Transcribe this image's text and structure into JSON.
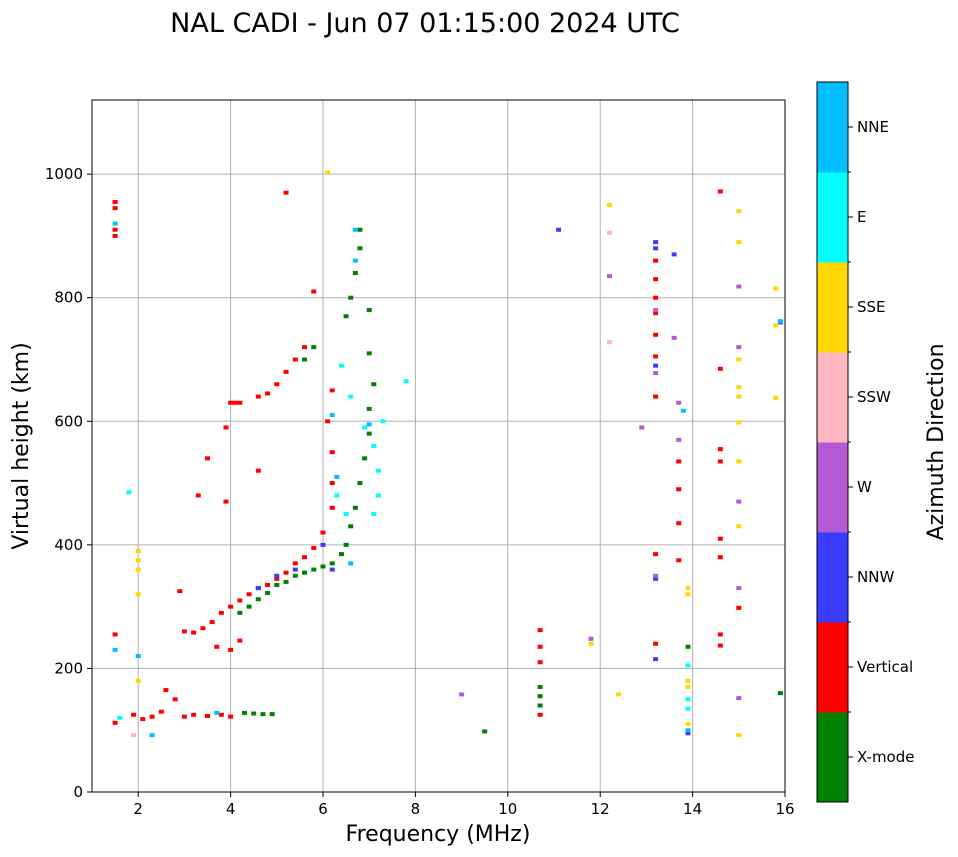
{
  "chart_data": {
    "type": "scatter",
    "title": "NAL CADI - Jun 07 01:15:00 2024 UTC",
    "xlabel": "Frequency (MHz)",
    "ylabel": "Virtual height (km)",
    "xlim": [
      1,
      16
    ],
    "ylim": [
      0,
      1120
    ],
    "xticks": [
      2,
      4,
      6,
      8,
      10,
      12,
      14,
      16
    ],
    "yticks": [
      0,
      200,
      400,
      600,
      800,
      1000
    ],
    "grid": true,
    "colorbar": {
      "label": "Azimuth Direction",
      "categories": [
        {
          "name": "X-mode",
          "color": "#008000"
        },
        {
          "name": "Vertical",
          "color": "#ff0000"
        },
        {
          "name": "NNW",
          "color": "#3b3bff"
        },
        {
          "name": "W",
          "color": "#b35ad6"
        },
        {
          "name": "SSW",
          "color": "#ffb6c1"
        },
        {
          "name": "SSE",
          "color": "#ffd700"
        },
        {
          "name": "E",
          "color": "#00ffff"
        },
        {
          "name": "NNE",
          "color": "#00bfff"
        }
      ]
    },
    "series": [
      {
        "name": "Vertical",
        "points": [
          [
            1.5,
            955
          ],
          [
            1.5,
            945
          ],
          [
            1.5,
            910
          ],
          [
            1.5,
            900
          ],
          [
            1.5,
            255
          ],
          [
            1.5,
            112
          ],
          [
            1.9,
            125
          ],
          [
            2.1,
            118
          ],
          [
            2.3,
            122
          ],
          [
            2.5,
            130
          ],
          [
            2.6,
            165
          ],
          [
            2.8,
            150
          ],
          [
            3.0,
            122
          ],
          [
            3.2,
            125
          ],
          [
            3.5,
            123
          ],
          [
            3.8,
            125
          ],
          [
            4.0,
            122
          ],
          [
            2.9,
            325
          ],
          [
            3.0,
            260
          ],
          [
            3.2,
            258
          ],
          [
            3.4,
            265
          ],
          [
            3.6,
            275
          ],
          [
            3.8,
            290
          ],
          [
            4.0,
            300
          ],
          [
            4.2,
            310
          ],
          [
            4.4,
            320
          ],
          [
            4.6,
            330
          ],
          [
            4.8,
            335
          ],
          [
            5.0,
            345
          ],
          [
            5.2,
            355
          ],
          [
            5.4,
            370
          ],
          [
            5.6,
            380
          ],
          [
            5.8,
            395
          ],
          [
            6.0,
            420
          ],
          [
            4.0,
            630
          ],
          [
            4.1,
            630
          ],
          [
            4.2,
            630
          ],
          [
            4.6,
            640
          ],
          [
            4.8,
            645
          ],
          [
            5.0,
            660
          ],
          [
            5.2,
            680
          ],
          [
            5.4,
            700
          ],
          [
            5.6,
            720
          ],
          [
            3.9,
            590
          ],
          [
            3.5,
            540
          ],
          [
            3.3,
            480
          ],
          [
            3.9,
            470
          ],
          [
            4.6,
            520
          ],
          [
            6.1,
            600
          ],
          [
            6.2,
            550
          ],
          [
            6.2,
            500
          ],
          [
            6.2,
            460
          ],
          [
            5.8,
            810
          ],
          [
            5.2,
            970
          ],
          [
            6.2,
            650
          ],
          [
            4.0,
            230
          ],
          [
            4.2,
            245
          ],
          [
            3.7,
            235
          ],
          [
            10.7,
            262
          ],
          [
            10.7,
            235
          ],
          [
            10.7,
            210
          ],
          [
            10.7,
            125
          ],
          [
            13.2,
            860
          ],
          [
            13.2,
            830
          ],
          [
            13.2,
            800
          ],
          [
            13.2,
            775
          ],
          [
            13.2,
            740
          ],
          [
            13.2,
            705
          ],
          [
            13.2,
            640
          ],
          [
            13.2,
            385
          ],
          [
            13.2,
            240
          ],
          [
            13.7,
            535
          ],
          [
            13.7,
            490
          ],
          [
            13.7,
            435
          ],
          [
            13.7,
            375
          ],
          [
            14.6,
            972
          ],
          [
            14.6,
            685
          ],
          [
            14.6,
            555
          ],
          [
            14.6,
            535
          ],
          [
            14.6,
            410
          ],
          [
            14.6,
            380
          ],
          [
            14.6,
            255
          ],
          [
            14.6,
            237
          ],
          [
            15.0,
            298
          ]
        ]
      },
      {
        "name": "X-mode",
        "points": [
          [
            4.3,
            128
          ],
          [
            4.5,
            127
          ],
          [
            4.7,
            126
          ],
          [
            4.9,
            126
          ],
          [
            4.2,
            290
          ],
          [
            4.4,
            300
          ],
          [
            4.6,
            312
          ],
          [
            4.8,
            322
          ],
          [
            5.0,
            335
          ],
          [
            5.2,
            340
          ],
          [
            5.4,
            350
          ],
          [
            5.6,
            355
          ],
          [
            5.8,
            360
          ],
          [
            6.0,
            365
          ],
          [
            6.2,
            370
          ],
          [
            6.4,
            385
          ],
          [
            6.5,
            400
          ],
          [
            6.6,
            430
          ],
          [
            6.7,
            460
          ],
          [
            6.8,
            500
          ],
          [
            6.9,
            540
          ],
          [
            7.0,
            580
          ],
          [
            7.0,
            620
          ],
          [
            7.1,
            660
          ],
          [
            5.6,
            700
          ],
          [
            5.8,
            720
          ],
          [
            6.5,
            770
          ],
          [
            6.6,
            800
          ],
          [
            6.7,
            840
          ],
          [
            6.8,
            880
          ],
          [
            6.8,
            910
          ],
          [
            7.0,
            780
          ],
          [
            7.0,
            710
          ],
          [
            10.7,
            170
          ],
          [
            10.7,
            155
          ],
          [
            10.7,
            140
          ],
          [
            13.9,
            235
          ],
          [
            15.9,
            160
          ],
          [
            9.5,
            98
          ]
        ]
      },
      {
        "name": "NNW",
        "points": [
          [
            4.6,
            330
          ],
          [
            5.0,
            350
          ],
          [
            5.4,
            360
          ],
          [
            6.0,
            400
          ],
          [
            6.2,
            360
          ],
          [
            11.1,
            910
          ],
          [
            13.2,
            890
          ],
          [
            13.2,
            880
          ],
          [
            13.2,
            690
          ],
          [
            13.2,
            345
          ],
          [
            13.2,
            215
          ],
          [
            13.6,
            870
          ],
          [
            13.9,
            95
          ],
          [
            15.9,
            760
          ]
        ]
      },
      {
        "name": "W",
        "points": [
          [
            9.0,
            158
          ],
          [
            11.8,
            248
          ],
          [
            12.2,
            835
          ],
          [
            12.9,
            590
          ],
          [
            13.2,
            780
          ],
          [
            13.2,
            678
          ],
          [
            13.2,
            350
          ],
          [
            13.6,
            735
          ],
          [
            13.7,
            630
          ],
          [
            13.7,
            570
          ],
          [
            15.0,
            818
          ],
          [
            15.0,
            720
          ],
          [
            15.0,
            470
          ],
          [
            15.0,
            330
          ],
          [
            15.0,
            152
          ]
        ]
      },
      {
        "name": "SSW",
        "points": [
          [
            12.2,
            905
          ],
          [
            12.2,
            728
          ],
          [
            1.9,
            92
          ]
        ]
      },
      {
        "name": "SSE",
        "points": [
          [
            6.1,
            1003
          ],
          [
            2.0,
            390
          ],
          [
            2.0,
            375
          ],
          [
            2.0,
            360
          ],
          [
            2.0,
            320
          ],
          [
            2.0,
            180
          ],
          [
            11.8,
            240
          ],
          [
            12.2,
            950
          ],
          [
            12.4,
            158
          ],
          [
            13.9,
            330
          ],
          [
            13.9,
            320
          ],
          [
            13.9,
            180
          ],
          [
            13.9,
            170
          ],
          [
            13.9,
            110
          ],
          [
            15.0,
            940
          ],
          [
            15.0,
            890
          ],
          [
            15.0,
            700
          ],
          [
            15.0,
            655
          ],
          [
            15.0,
            640
          ],
          [
            15.0,
            598
          ],
          [
            15.0,
            535
          ],
          [
            15.0,
            430
          ],
          [
            15.0,
            92
          ],
          [
            15.8,
            815
          ],
          [
            15.8,
            755
          ],
          [
            15.8,
            638
          ]
        ]
      },
      {
        "name": "E",
        "points": [
          [
            6.4,
            690
          ],
          [
            6.6,
            640
          ],
          [
            6.9,
            590
          ],
          [
            7.1,
            560
          ],
          [
            7.2,
            520
          ],
          [
            7.2,
            480
          ],
          [
            7.1,
            450
          ],
          [
            7.3,
            600
          ],
          [
            7.8,
            665
          ],
          [
            6.3,
            480
          ],
          [
            6.5,
            450
          ],
          [
            1.8,
            485
          ],
          [
            1.6,
            120
          ],
          [
            13.9,
            205
          ],
          [
            13.9,
            150
          ],
          [
            13.9,
            135
          ]
        ]
      },
      {
        "name": "NNE",
        "points": [
          [
            1.5,
            230
          ],
          [
            1.5,
            920
          ],
          [
            2.0,
            220
          ],
          [
            2.3,
            92
          ],
          [
            3.7,
            128
          ],
          [
            6.2,
            610
          ],
          [
            6.3,
            510
          ],
          [
            6.6,
            370
          ],
          [
            6.7,
            910
          ],
          [
            6.7,
            860
          ],
          [
            7.0,
            595
          ],
          [
            13.8,
            617
          ],
          [
            13.9,
            100
          ],
          [
            15.9,
            762
          ]
        ]
      }
    ]
  }
}
